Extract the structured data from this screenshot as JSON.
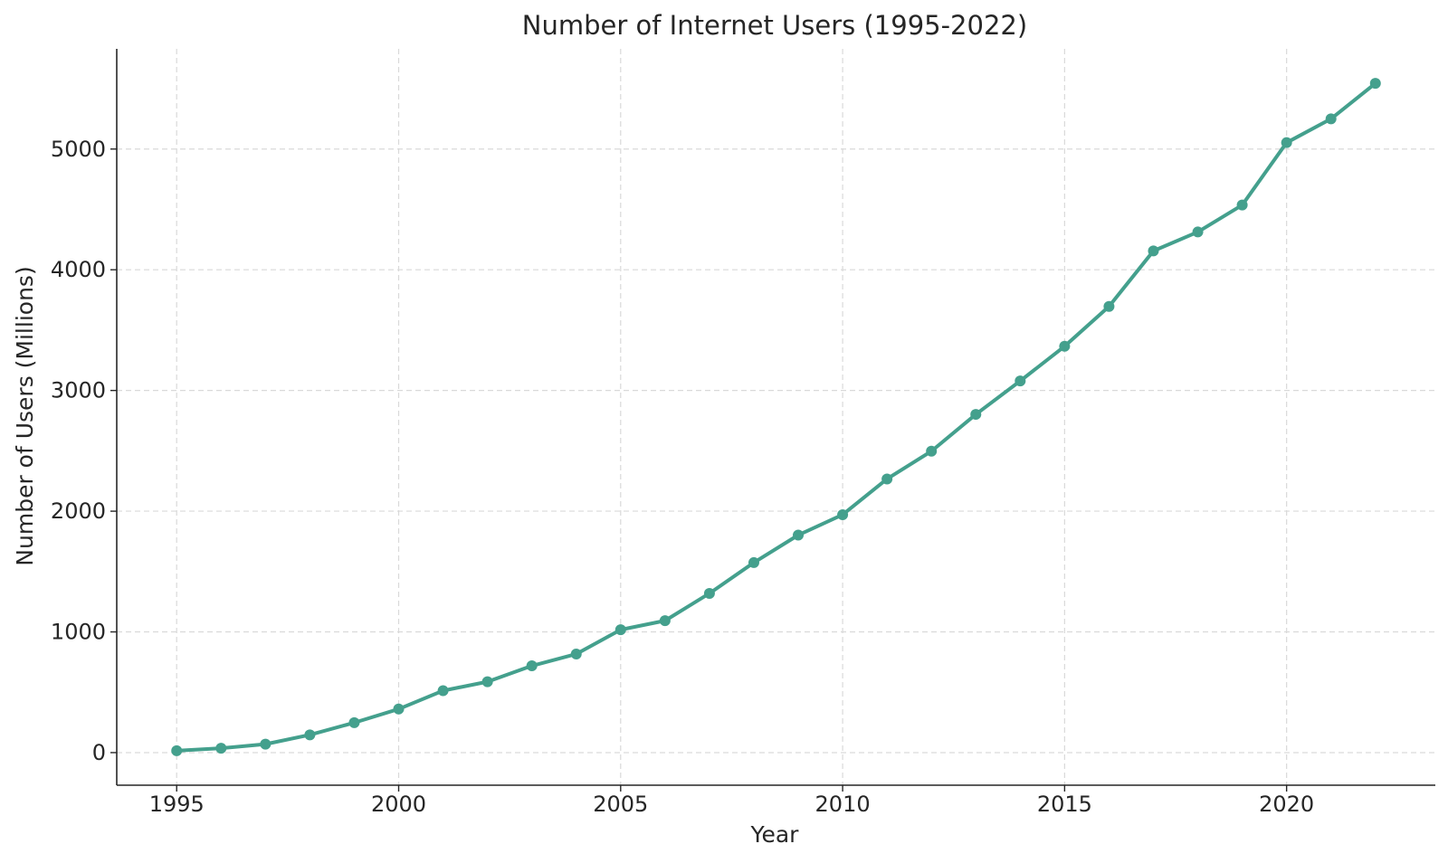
{
  "chart_data": {
    "type": "line",
    "title": "Number of Internet Users (1995-2022)",
    "xlabel": "Year",
    "ylabel": "Number of Users (Millions)",
    "xlim": [
      1993.65,
      2023.35
    ],
    "ylim": [
      -270,
      5830
    ],
    "xticks": [
      1995,
      2000,
      2005,
      2010,
      2015,
      2020
    ],
    "yticks": [
      0,
      1000,
      2000,
      3000,
      4000,
      5000
    ],
    "grid": true,
    "grid_style": "dashed",
    "series": [
      {
        "name": "Internet Users",
        "color": "#44a08d",
        "marker": "circle",
        "x": [
          1995,
          1996,
          1997,
          1998,
          1999,
          2000,
          2001,
          2002,
          2003,
          2004,
          2005,
          2006,
          2007,
          2008,
          2009,
          2010,
          2011,
          2012,
          2013,
          2014,
          2015,
          2016,
          2017,
          2018,
          2019,
          2020,
          2021,
          2022
        ],
        "values": [
          16,
          36,
          70,
          147,
          248,
          361,
          513,
          587,
          719,
          817,
          1018,
          1093,
          1319,
          1574,
          1802,
          1971,
          2267,
          2497,
          2802,
          3079,
          3366,
          3696,
          4156,
          4313,
          4536,
          5053,
          5250,
          5544
        ]
      }
    ]
  }
}
